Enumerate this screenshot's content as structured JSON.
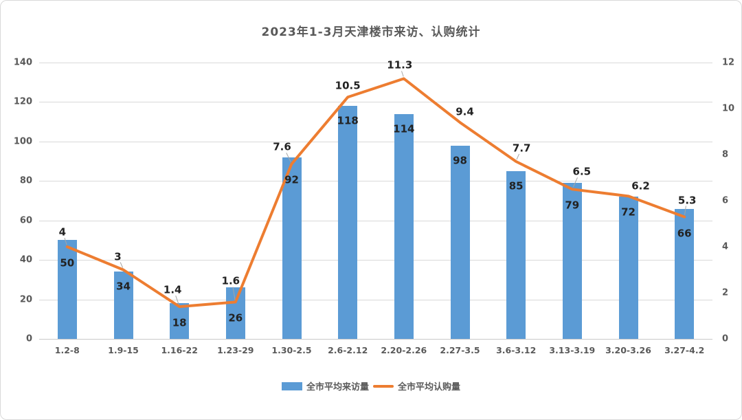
{
  "title": "2023年1-3月天津楼市来访、认购统计",
  "chart_data": {
    "type": "combo",
    "title": "2023年1-3月天津楼市来访、认购统计",
    "categories": [
      "1.2-8",
      "1.9-15",
      "1.16-22",
      "1.23-29",
      "1.30-2.5",
      "2.6-2.12",
      "2.20-2.26",
      "2.27-3.5",
      "3.6-3.12",
      "3.13-3.19",
      "3.20-3.26",
      "3.27-4.2"
    ],
    "series": [
      {
        "name": "全市平均来访量",
        "type": "bar",
        "axis": "left",
        "color": "#5B9BD5",
        "values": [
          50,
          34,
          18,
          26,
          92,
          118,
          114,
          98,
          85,
          79,
          72,
          66
        ]
      },
      {
        "name": "全市平均认购量",
        "type": "line",
        "axis": "right",
        "color": "#ED7D31",
        "values": [
          4,
          3,
          1.4,
          1.6,
          7.6,
          10.5,
          11.3,
          9.4,
          7.7,
          6.5,
          6.2,
          5.3
        ]
      }
    ],
    "axes": {
      "left": {
        "min": 0,
        "max": 140,
        "step": 20,
        "ticks": [
          0,
          20,
          40,
          60,
          80,
          100,
          120,
          140
        ]
      },
      "right": {
        "min": 0,
        "max": 12,
        "step": 2,
        "ticks": [
          0,
          2,
          4,
          6,
          8,
          10,
          12
        ]
      }
    },
    "grid": "horizontal-on",
    "legend_position": "bottom",
    "data_labels": "on"
  },
  "colors": {
    "bar": "#5B9BD5",
    "line": "#ED7D31",
    "grid_line": "#d9d9d9",
    "axis_text": "#595959",
    "data_label_text": "#222222",
    "leader_line": "#a6a6a6",
    "card_border": "#d9d9d9",
    "background": "#ffffff"
  }
}
